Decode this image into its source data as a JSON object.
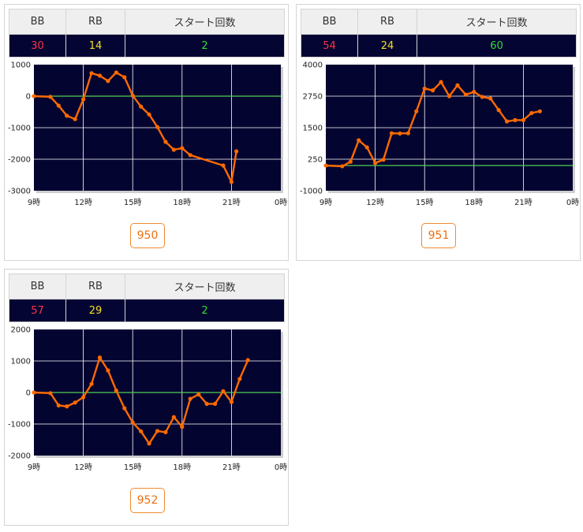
{
  "headers": {
    "bb": "BB",
    "rb": "RB",
    "start": "スタート回数"
  },
  "colors": {
    "line": "#ff6a00",
    "zero": "#4fd04f",
    "plot_bg": "#040431",
    "grid": "#ffffff"
  },
  "machines": [
    {
      "bb": "30",
      "rb": "14",
      "start": "2",
      "number": "950"
    },
    {
      "bb": "54",
      "rb": "24",
      "start": "60",
      "number": "951"
    },
    {
      "bb": "57",
      "rb": "29",
      "start": "2",
      "number": "952"
    }
  ],
  "chart_data": [
    {
      "type": "line",
      "xlim": [
        9,
        24
      ],
      "ylim": [
        -3000,
        1000
      ],
      "x_ticks": [
        "9時",
        "12時",
        "15時",
        "18時",
        "21時",
        "0時"
      ],
      "y_ticks": [
        "1000",
        "0",
        "-1000",
        "-2000",
        "-3000"
      ],
      "zero_line": 0,
      "points": [
        [
          9,
          0
        ],
        [
          10,
          -20
        ],
        [
          10.5,
          -300
        ],
        [
          11,
          -620
        ],
        [
          11.5,
          -730
        ],
        [
          12,
          -100
        ],
        [
          12.5,
          730
        ],
        [
          13,
          650
        ],
        [
          13.5,
          480
        ],
        [
          14,
          750
        ],
        [
          14.5,
          600
        ],
        [
          15,
          20
        ],
        [
          15.5,
          -330
        ],
        [
          16,
          -580
        ],
        [
          16.5,
          -980
        ],
        [
          17,
          -1450
        ],
        [
          17.5,
          -1700
        ],
        [
          18,
          -1650
        ],
        [
          18.5,
          -1870
        ],
        [
          20.5,
          -2200
        ],
        [
          21,
          -2720
        ],
        [
          21.3,
          -1750
        ]
      ]
    },
    {
      "type": "line",
      "xlim": [
        9,
        24
      ],
      "ylim": [
        -1000,
        4000
      ],
      "x_ticks": [
        "9時",
        "12時",
        "15時",
        "18時",
        "21時",
        "0時"
      ],
      "y_ticks": [
        "4000",
        "2750",
        "1500",
        "250",
        "-1000"
      ],
      "zero_line": 0,
      "points": [
        [
          9,
          0
        ],
        [
          10,
          -30
        ],
        [
          10.5,
          150
        ],
        [
          11,
          1000
        ],
        [
          11.5,
          720
        ],
        [
          12,
          100
        ],
        [
          12.5,
          230
        ],
        [
          13,
          1280
        ],
        [
          13.5,
          1270
        ],
        [
          14,
          1280
        ],
        [
          14.5,
          2150
        ],
        [
          15,
          3050
        ],
        [
          15.5,
          2980
        ],
        [
          16,
          3310
        ],
        [
          16.5,
          2750
        ],
        [
          17,
          3180
        ],
        [
          17.5,
          2810
        ],
        [
          18,
          2920
        ],
        [
          18.5,
          2720
        ],
        [
          19,
          2660
        ],
        [
          19.5,
          2200
        ],
        [
          20,
          1750
        ],
        [
          20.5,
          1800
        ],
        [
          21,
          1800
        ],
        [
          21.5,
          2080
        ],
        [
          22,
          2150
        ]
      ]
    },
    {
      "type": "line",
      "xlim": [
        9,
        24
      ],
      "ylim": [
        -2000,
        2000
      ],
      "x_ticks": [
        "9時",
        "12時",
        "15時",
        "18時",
        "21時",
        "0時"
      ],
      "y_ticks": [
        "2000",
        "1000",
        "0",
        "-1000",
        "-2000"
      ],
      "zero_line": 0,
      "points": [
        [
          9,
          0
        ],
        [
          10,
          -20
        ],
        [
          10.5,
          -410
        ],
        [
          11,
          -440
        ],
        [
          11.5,
          -320
        ],
        [
          12,
          -150
        ],
        [
          12.5,
          270
        ],
        [
          13,
          1110
        ],
        [
          13.5,
          700
        ],
        [
          14,
          60
        ],
        [
          14.5,
          -500
        ],
        [
          15,
          -950
        ],
        [
          15.5,
          -1230
        ],
        [
          16,
          -1620
        ],
        [
          16.5,
          -1220
        ],
        [
          17,
          -1260
        ],
        [
          17.5,
          -780
        ],
        [
          18,
          -1090
        ],
        [
          18.5,
          -200
        ],
        [
          19,
          -60
        ],
        [
          19.5,
          -360
        ],
        [
          20,
          -360
        ],
        [
          20.5,
          40
        ],
        [
          21,
          -300
        ],
        [
          21.5,
          430
        ],
        [
          22,
          1030
        ]
      ]
    }
  ]
}
